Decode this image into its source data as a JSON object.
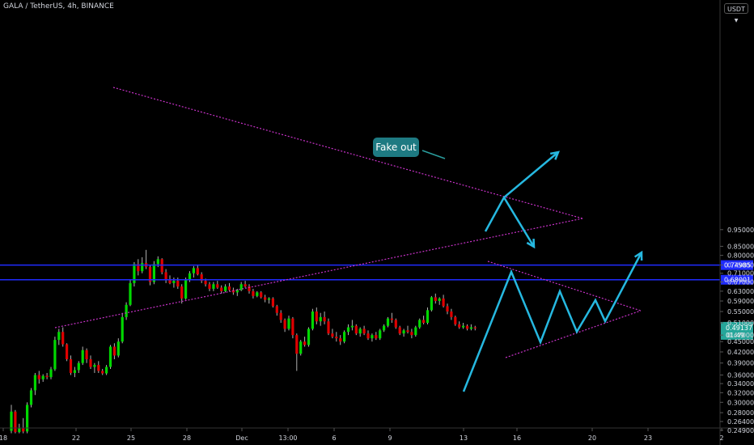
{
  "header": {
    "title": "GALA / TetherUS, 4h, BINANCE",
    "currency": "USDT",
    "currency_icon": "chevron-down-icon"
  },
  "chart_data": {
    "type": "candlestick",
    "symbol": "GALA / TetherUS",
    "interval": "4h",
    "exchange": "BINANCE",
    "y_scale": "log",
    "ylim": [
      0.244,
      1.0
    ],
    "y_ticks": [
      "0.95000",
      "0.85000",
      "0.80000",
      "0.75000",
      "0.71000",
      "0.67000",
      "0.63000",
      "0.59000",
      "0.55000",
      "0.51000",
      "0.47000",
      "0.45000",
      "0.42000",
      "0.39000",
      "0.36000",
      "0.34000",
      "0.32000",
      "0.30000",
      "0.28000",
      "0.26400",
      "0.24900"
    ],
    "x_ticks": [
      "18",
      "22",
      "25",
      "28",
      "Dec",
      "13:00",
      "6",
      "9",
      "13",
      "16",
      "20",
      "23",
      "2"
    ],
    "horizontal_levels": [
      {
        "price": "0.74985",
        "color": "#1f2bff"
      },
      {
        "price": "0.68001",
        "color": "#1f2bff"
      }
    ],
    "last_price": {
      "value": "0.49137",
      "countdown": "01:49",
      "color": "#26a69a"
    },
    "annotation": "Fake out",
    "up_color": "#00d800",
    "down_color": "#e00000",
    "pattern_color": "#c832c8",
    "projection_color": "#26b8e0",
    "candles": [
      [
        0.248,
        0.295,
        0.244,
        0.282
      ],
      [
        0.282,
        0.285,
        0.244,
        0.246
      ],
      [
        0.246,
        0.26,
        0.244,
        0.252
      ],
      [
        0.252,
        0.27,
        0.244,
        0.247
      ],
      [
        0.247,
        0.3,
        0.244,
        0.295
      ],
      [
        0.295,
        0.33,
        0.29,
        0.325
      ],
      [
        0.325,
        0.365,
        0.315,
        0.36
      ],
      [
        0.36,
        0.37,
        0.34,
        0.35
      ],
      [
        0.35,
        0.362,
        0.344,
        0.358
      ],
      [
        0.358,
        0.365,
        0.35,
        0.355
      ],
      [
        0.355,
        0.38,
        0.35,
        0.374
      ],
      [
        0.374,
        0.465,
        0.37,
        0.455
      ],
      [
        0.455,
        0.49,
        0.44,
        0.48
      ],
      [
        0.48,
        0.495,
        0.435,
        0.442
      ],
      [
        0.442,
        0.445,
        0.395,
        0.4
      ],
      [
        0.4,
        0.41,
        0.36,
        0.365
      ],
      [
        0.365,
        0.38,
        0.355,
        0.372
      ],
      [
        0.372,
        0.395,
        0.365,
        0.39
      ],
      [
        0.39,
        0.435,
        0.385,
        0.425
      ],
      [
        0.425,
        0.43,
        0.39,
        0.4
      ],
      [
        0.4,
        0.41,
        0.375,
        0.38
      ],
      [
        0.38,
        0.39,
        0.365,
        0.385
      ],
      [
        0.385,
        0.395,
        0.365,
        0.37
      ],
      [
        0.37,
        0.375,
        0.36,
        0.364
      ],
      [
        0.364,
        0.385,
        0.36,
        0.38
      ],
      [
        0.38,
        0.44,
        0.375,
        0.435
      ],
      [
        0.435,
        0.445,
        0.4,
        0.41
      ],
      [
        0.41,
        0.46,
        0.405,
        0.45
      ],
      [
        0.45,
        0.545,
        0.445,
        0.53
      ],
      [
        0.53,
        0.585,
        0.52,
        0.575
      ],
      [
        0.575,
        0.68,
        0.57,
        0.665
      ],
      [
        0.665,
        0.765,
        0.65,
        0.755
      ],
      [
        0.755,
        0.78,
        0.7,
        0.72
      ],
      [
        0.72,
        0.79,
        0.71,
        0.76
      ],
      [
        0.76,
        0.83,
        0.73,
        0.74
      ],
      [
        0.74,
        0.75,
        0.655,
        0.67
      ],
      [
        0.67,
        0.77,
        0.66,
        0.755
      ],
      [
        0.755,
        0.795,
        0.74,
        0.78
      ],
      [
        0.78,
        0.785,
        0.705,
        0.715
      ],
      [
        0.715,
        0.73,
        0.665,
        0.68
      ],
      [
        0.68,
        0.7,
        0.66,
        0.665
      ],
      [
        0.665,
        0.69,
        0.645,
        0.675
      ],
      [
        0.675,
        0.69,
        0.64,
        0.65
      ],
      [
        0.65,
        0.66,
        0.58,
        0.6
      ],
      [
        0.6,
        0.69,
        0.595,
        0.68
      ],
      [
        0.68,
        0.72,
        0.67,
        0.71
      ],
      [
        0.71,
        0.745,
        0.69,
        0.735
      ],
      [
        0.735,
        0.75,
        0.7,
        0.705
      ],
      [
        0.705,
        0.715,
        0.665,
        0.675
      ],
      [
        0.675,
        0.685,
        0.65,
        0.66
      ],
      [
        0.66,
        0.67,
        0.63,
        0.64
      ],
      [
        0.64,
        0.67,
        0.63,
        0.66
      ],
      [
        0.66,
        0.675,
        0.64,
        0.645
      ],
      [
        0.645,
        0.655,
        0.62,
        0.63
      ],
      [
        0.63,
        0.66,
        0.625,
        0.65
      ],
      [
        0.65,
        0.665,
        0.63,
        0.635
      ],
      [
        0.635,
        0.645,
        0.615,
        0.625
      ],
      [
        0.625,
        0.64,
        0.61,
        0.635
      ],
      [
        0.635,
        0.67,
        0.63,
        0.66
      ],
      [
        0.66,
        0.675,
        0.645,
        0.65
      ],
      [
        0.65,
        0.66,
        0.62,
        0.63
      ],
      [
        0.63,
        0.64,
        0.6,
        0.61
      ],
      [
        0.61,
        0.63,
        0.605,
        0.625
      ],
      [
        0.625,
        0.63,
        0.6,
        0.605
      ],
      [
        0.605,
        0.615,
        0.585,
        0.595
      ],
      [
        0.595,
        0.605,
        0.58,
        0.6
      ],
      [
        0.6,
        0.605,
        0.565,
        0.57
      ],
      [
        0.57,
        0.575,
        0.535,
        0.545
      ],
      [
        0.545,
        0.555,
        0.51,
        0.52
      ],
      [
        0.52,
        0.525,
        0.48,
        0.49
      ],
      [
        0.49,
        0.535,
        0.485,
        0.525
      ],
      [
        0.525,
        0.53,
        0.46,
        0.47
      ],
      [
        0.47,
        0.475,
        0.37,
        0.415
      ],
      [
        0.415,
        0.455,
        0.41,
        0.45
      ],
      [
        0.45,
        0.465,
        0.435,
        0.44
      ],
      [
        0.44,
        0.495,
        0.435,
        0.49
      ],
      [
        0.49,
        0.56,
        0.485,
        0.55
      ],
      [
        0.55,
        0.565,
        0.505,
        0.515
      ],
      [
        0.515,
        0.545,
        0.5,
        0.53
      ],
      [
        0.53,
        0.55,
        0.505,
        0.515
      ],
      [
        0.515,
        0.525,
        0.47,
        0.475
      ],
      [
        0.475,
        0.49,
        0.46,
        0.465
      ],
      [
        0.465,
        0.48,
        0.45,
        0.46
      ],
      [
        0.46,
        0.47,
        0.44,
        0.45
      ],
      [
        0.45,
        0.485,
        0.445,
        0.48
      ],
      [
        0.48,
        0.505,
        0.47,
        0.495
      ],
      [
        0.495,
        0.52,
        0.485,
        0.5
      ],
      [
        0.5,
        0.505,
        0.47,
        0.475
      ],
      [
        0.475,
        0.495,
        0.465,
        0.49
      ],
      [
        0.49,
        0.5,
        0.47,
        0.475
      ],
      [
        0.475,
        0.485,
        0.455,
        0.46
      ],
      [
        0.46,
        0.475,
        0.45,
        0.47
      ],
      [
        0.47,
        0.48,
        0.455,
        0.46
      ],
      [
        0.46,
        0.49,
        0.455,
        0.485
      ],
      [
        0.485,
        0.505,
        0.48,
        0.5
      ],
      [
        0.5,
        0.53,
        0.495,
        0.525
      ],
      [
        0.525,
        0.545,
        0.51,
        0.52
      ],
      [
        0.52,
        0.525,
        0.49,
        0.495
      ],
      [
        0.495,
        0.5,
        0.47,
        0.475
      ],
      [
        0.475,
        0.49,
        0.465,
        0.485
      ],
      [
        0.485,
        0.5,
        0.475,
        0.48
      ],
      [
        0.48,
        0.49,
        0.46,
        0.47
      ],
      [
        0.47,
        0.5,
        0.465,
        0.495
      ],
      [
        0.495,
        0.525,
        0.49,
        0.52
      ],
      [
        0.52,
        0.535,
        0.505,
        0.51
      ],
      [
        0.51,
        0.565,
        0.505,
        0.555
      ],
      [
        0.555,
        0.61,
        0.55,
        0.605
      ],
      [
        0.605,
        0.62,
        0.58,
        0.59
      ],
      [
        0.59,
        0.605,
        0.575,
        0.6
      ],
      [
        0.6,
        0.615,
        0.565,
        0.57
      ],
      [
        0.57,
        0.58,
        0.54,
        0.55
      ],
      [
        0.55,
        0.56,
        0.52,
        0.53
      ],
      [
        0.53,
        0.535,
        0.5,
        0.505
      ],
      [
        0.505,
        0.515,
        0.49,
        0.495
      ],
      [
        0.495,
        0.51,
        0.49,
        0.5
      ],
      [
        0.5,
        0.505,
        0.485,
        0.49
      ],
      [
        0.49,
        0.505,
        0.485,
        0.495
      ],
      [
        0.495,
        0.5,
        0.485,
        0.4914
      ]
    ],
    "patterns": {
      "upper_trend": [
        [
          140,
          108
        ],
        [
          720,
          270
        ]
      ],
      "lower_trend": [
        [
          68,
          405
        ],
        [
          720,
          270
        ]
      ],
      "upper_small": [
        [
          603,
          323
        ],
        [
          792,
          384
        ]
      ],
      "lower_small": [
        [
          625,
          442
        ],
        [
          792,
          384
        ]
      ],
      "zigzag": [
        [
          573,
          484
        ],
        [
          632,
          336
        ],
        [
          668,
          423
        ],
        [
          692,
          360
        ],
        [
          713,
          410
        ],
        [
          736,
          371
        ],
        [
          748,
          397
        ],
        [
          793,
          312
        ]
      ],
      "break_paths": [
        [
          [
            600,
            286
          ],
          [
            623,
            244
          ],
          [
            690,
            188
          ]
        ],
        [
          [
            623,
            244
          ],
          [
            660,
            305
          ]
        ]
      ]
    }
  }
}
